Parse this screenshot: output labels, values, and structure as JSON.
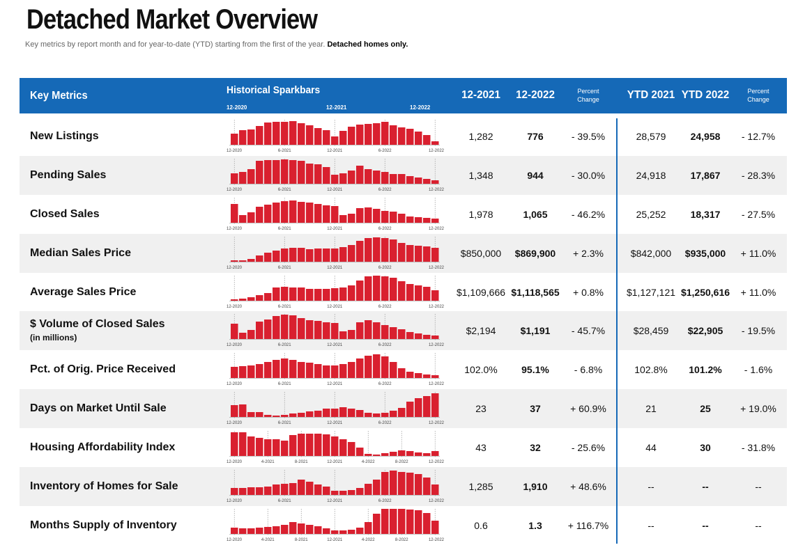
{
  "title": "Detached Market Overview",
  "subtitle_plain": "Key metrics by report month and for year-to-date (YTD) starting from the first of the year. ",
  "subtitle_bold": "Detached homes only.",
  "header": {
    "key_metrics": "Key Metrics",
    "sparkbars": "Historical Sparkbars",
    "spark_dates": [
      "12-2020",
      "12-2021",
      "12-2022"
    ],
    "col1": "12-2021",
    "col2": "12-2022",
    "pct1_line1": "Percent",
    "pct1_line2": "Change",
    "col4": "YTD 2021",
    "col5": "YTD 2022",
    "pct2_line1": "Percent",
    "pct2_line2": "Change"
  },
  "colors": {
    "header_bg": "#1569b7",
    "bar": "#d9202f",
    "row_shade": "#f0f0f0"
  },
  "metrics": [
    {
      "label": "New Listings",
      "sublabel": "",
      "m2021": "1,282",
      "m2022": "776",
      "pct": "- 39.5%",
      "ytd2021": "28,579",
      "ytd2022": "24,958",
      "ytd_pct": "- 12.7%",
      "axis": [
        "12-2020",
        "6-2021",
        "12-2021",
        "6-2022",
        "12-2022"
      ],
      "bars": [
        16,
        21,
        22,
        27,
        32,
        33,
        33,
        34,
        31,
        28,
        24,
        21,
        12,
        20,
        26,
        29,
        30,
        31,
        33,
        28,
        25,
        23,
        19,
        14,
        5
      ]
    },
    {
      "label": "Pending Sales",
      "sublabel": "",
      "m2021": "1,348",
      "m2022": "944",
      "pct": "- 30.0%",
      "ytd2021": "24,918",
      "ytd2022": "17,867",
      "ytd_pct": "- 28.3%",
      "axis": [
        "12-2020",
        "6-2021",
        "12-2021",
        "6-2022",
        "12-2022"
      ],
      "bars": [
        15,
        17,
        21,
        33,
        34,
        34,
        35,
        34,
        33,
        29,
        28,
        24,
        13,
        15,
        19,
        26,
        21,
        19,
        17,
        14,
        14,
        11,
        9,
        7,
        5
      ]
    },
    {
      "label": "Closed Sales",
      "sublabel": "",
      "m2021": "1,978",
      "m2022": "1,065",
      "pct": "- 46.2%",
      "ytd2021": "25,252",
      "ytd2022": "18,317",
      "ytd_pct": "- 27.5%",
      "axis": [
        "12-2020",
        "6-2021",
        "12-2021",
        "6-2022",
        "12-2022"
      ],
      "bars": [
        27,
        11,
        15,
        23,
        26,
        29,
        31,
        32,
        30,
        29,
        27,
        25,
        24,
        11,
        13,
        21,
        22,
        20,
        17,
        16,
        13,
        9,
        8,
        7,
        6
      ]
    },
    {
      "label": "Median Sales Price",
      "sublabel": "",
      "m2021": "$850,000",
      "m2022": "$869,900",
      "pct": "+ 2.3%",
      "ytd2021": "$842,000",
      "ytd2022": "$935,000",
      "ytd_pct": "+ 11.0%",
      "axis": [
        "12-2020",
        "6-2021",
        "12-2021",
        "6-2022",
        "12-2022"
      ],
      "bars": [
        2,
        2,
        4,
        9,
        13,
        16,
        19,
        20,
        20,
        18,
        19,
        19,
        19,
        21,
        24,
        30,
        34,
        35,
        34,
        32,
        27,
        24,
        23,
        22,
        20
      ]
    },
    {
      "label": "Average Sales Price",
      "sublabel": "",
      "m2021": "$1,109,666",
      "m2022": "$1,118,565",
      "pct": "+ 0.8%",
      "ytd2021": "$1,127,121",
      "ytd2022": "$1,250,616",
      "ytd_pct": "+ 11.0%",
      "axis": [
        "12-2020",
        "6-2021",
        "12-2021",
        "6-2022",
        "12-2022"
      ],
      "bars": [
        2,
        3,
        5,
        8,
        11,
        19,
        20,
        19,
        19,
        17,
        17,
        17,
        18,
        19,
        22,
        29,
        35,
        36,
        35,
        33,
        28,
        24,
        22,
        20,
        15
      ]
    },
    {
      "label": "$ Volume of Closed Sales",
      "sublabel": "(in millions)",
      "m2021": "$2,194",
      "m2022": "$1,191",
      "pct": "- 45.7%",
      "ytd2021": "$28,459",
      "ytd2022": "$22,905",
      "ytd_pct": "- 19.5%",
      "axis": [
        "12-2020",
        "6-2021",
        "12-2021",
        "6-2022",
        "12-2022"
      ],
      "bars": [
        22,
        9,
        13,
        25,
        28,
        33,
        35,
        34,
        30,
        27,
        26,
        24,
        23,
        11,
        13,
        24,
        27,
        24,
        20,
        17,
        14,
        10,
        8,
        6,
        5
      ]
    },
    {
      "label": "Pct. of Orig. Price Received",
      "sublabel": "",
      "m2021": "102.0%",
      "m2022": "95.1%",
      "pct": "- 6.8%",
      "ytd2021": "102.8%",
      "ytd2022": "101.2%",
      "ytd_pct": "- 1.6%",
      "axis": [
        "12-2020",
        "6-2021",
        "12-2021",
        "6-2022",
        "12-2022"
      ],
      "bars": [
        16,
        17,
        18,
        20,
        23,
        26,
        28,
        26,
        23,
        22,
        20,
        18,
        18,
        20,
        23,
        28,
        32,
        34,
        31,
        23,
        14,
        9,
        7,
        5,
        4
      ]
    },
    {
      "label": "Days on Market Until Sale",
      "sublabel": "",
      "m2021": "23",
      "m2022": "37",
      "pct": "+ 60.9%",
      "ytd2021": "21",
      "ytd2022": "25",
      "ytd_pct": "+ 19.0%",
      "axis": [
        "12-2020",
        "6-2021",
        "12-2021",
        "6-2022",
        "12-2022"
      ],
      "bars": [
        17,
        18,
        7,
        7,
        3,
        2,
        3,
        5,
        6,
        8,
        9,
        12,
        12,
        14,
        12,
        10,
        6,
        5,
        6,
        9,
        13,
        22,
        27,
        30,
        34
      ]
    },
    {
      "label": "Housing Affordability Index",
      "sublabel": "",
      "m2021": "43",
      "m2022": "32",
      "pct": "- 25.6%",
      "ytd2021": "44",
      "ytd2022": "30",
      "ytd_pct": "- 31.8%",
      "axis": [
        "12-2020",
        "4-2021",
        "8-2021",
        "12-2021",
        "4-2022",
        "8-2022",
        "12-2022"
      ],
      "bars": [
        34,
        34,
        28,
        26,
        24,
        24,
        22,
        30,
        32,
        32,
        32,
        31,
        28,
        24,
        20,
        12,
        3,
        2,
        4,
        6,
        8,
        7,
        5,
        4,
        7
      ]
    },
    {
      "label": "Inventory of Homes for Sale",
      "sublabel": "",
      "m2021": "1,285",
      "m2022": "1,910",
      "pct": "+ 48.6%",
      "ytd2021": "--",
      "ytd2022": "--",
      "ytd_pct": "--",
      "axis": [
        "12-2020",
        "6-2021",
        "12-2021",
        "6-2022",
        "12-2022"
      ],
      "bars": [
        10,
        10,
        11,
        11,
        12,
        15,
        16,
        17,
        22,
        19,
        15,
        12,
        6,
        6,
        7,
        10,
        16,
        22,
        33,
        35,
        33,
        32,
        30,
        25,
        15
      ]
    },
    {
      "label": "Months Supply of Inventory",
      "sublabel": "",
      "m2021": "0.6",
      "m2022": "1.3",
      "pct": "+ 116.7%",
      "ytd2021": "--",
      "ytd2022": "--",
      "ytd_pct": "--",
      "axis": [
        "12-2020",
        "4-2021",
        "8-2021",
        "12-2021",
        "4-2022",
        "8-2022",
        "12-2022"
      ],
      "bars": [
        9,
        8,
        8,
        9,
        10,
        11,
        13,
        17,
        15,
        13,
        11,
        8,
        5,
        5,
        6,
        9,
        17,
        29,
        36,
        37,
        36,
        35,
        34,
        30,
        19
      ]
    }
  ]
}
